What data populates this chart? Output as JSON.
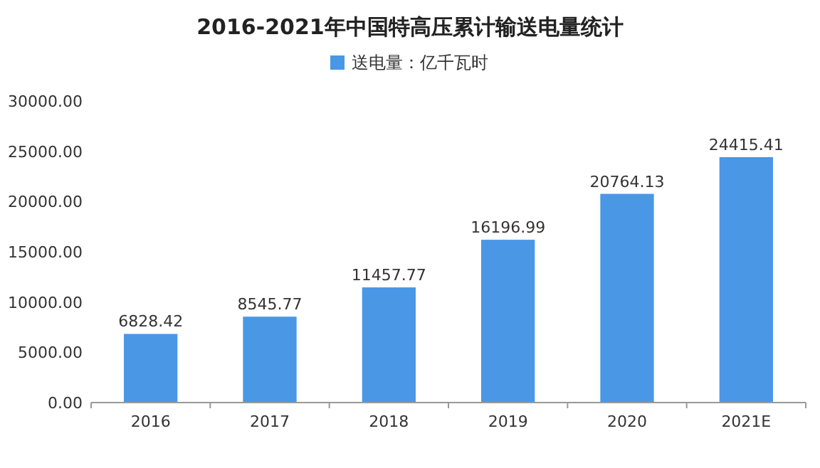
{
  "chart_data": {
    "type": "bar",
    "title": "2016-2021年中国特高压累计输送电量统计",
    "categories": [
      "2016",
      "2017",
      "2018",
      "2019",
      "2020",
      "2021E"
    ],
    "series": [
      {
        "name": "送电量：亿千瓦时",
        "color": "#4a97e6",
        "values": [
          6828.42,
          8545.77,
          11457.77,
          16196.99,
          20764.13,
          24415.41
        ]
      }
    ],
    "ylim": [
      0,
      30000
    ],
    "yticks": [
      {
        "value": 0,
        "label": "0.00"
      },
      {
        "value": 5000,
        "label": "5000.00"
      },
      {
        "value": 10000,
        "label": "10000.00"
      },
      {
        "value": 15000,
        "label": "15000.00"
      },
      {
        "value": 20000,
        "label": "20000.00"
      },
      {
        "value": 25000,
        "label": "25000.00"
      },
      {
        "value": 30000,
        "label": "30000.00"
      }
    ],
    "data_labels": true,
    "legend": "top",
    "grid": false
  }
}
